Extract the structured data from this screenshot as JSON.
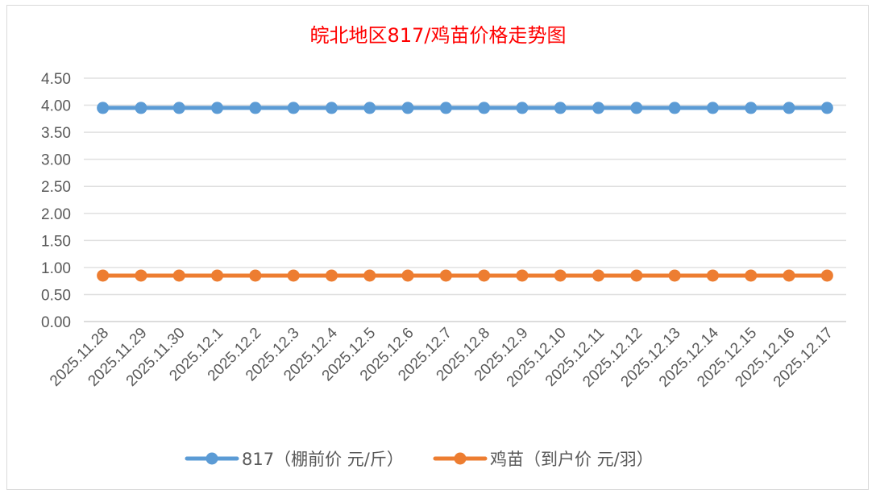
{
  "chart_data": {
    "type": "line",
    "title": "皖北地区817/鸡苗价格走势图",
    "xlabel": "",
    "ylabel": "",
    "categories": [
      "2025.11.28",
      "2025.11.29",
      "2025.11.30",
      "2025.12.1",
      "2025.12.2",
      "2025.12.3",
      "2025.12.4",
      "2025.12.5",
      "2025.12.6",
      "2025.12.7",
      "2025.12.8",
      "2025.12.9",
      "2025.12.10",
      "2025.12.11",
      "2025.12.12",
      "2025.12.13",
      "2025.12.14",
      "2025.12.15",
      "2025.12.16",
      "2025.12.17"
    ],
    "ylim": [
      0,
      4.5
    ],
    "yticks": [
      "0.00",
      "0.50",
      "1.00",
      "1.50",
      "2.00",
      "2.50",
      "3.00",
      "3.50",
      "4.00",
      "4.50"
    ],
    "grid": true,
    "legend_position": "bottom",
    "series": [
      {
        "name": "817（棚前价 元/斤）",
        "color": "#5b9bd5",
        "values": [
          3.95,
          3.95,
          3.95,
          3.95,
          3.95,
          3.95,
          3.95,
          3.95,
          3.95,
          3.95,
          3.95,
          3.95,
          3.95,
          3.95,
          3.95,
          3.95,
          3.95,
          3.95,
          3.95,
          3.95
        ]
      },
      {
        "name": "鸡苗（到户价 元/羽）",
        "color": "#ed7d31",
        "values": [
          0.85,
          0.85,
          0.85,
          0.85,
          0.85,
          0.85,
          0.85,
          0.85,
          0.85,
          0.85,
          0.85,
          0.85,
          0.85,
          0.85,
          0.85,
          0.85,
          0.85,
          0.85,
          0.85,
          0.85
        ]
      }
    ]
  }
}
